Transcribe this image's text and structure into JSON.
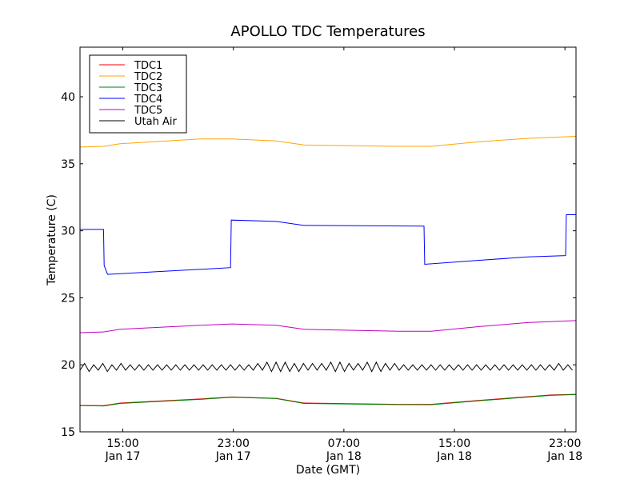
{
  "chart_data": {
    "type": "line",
    "title": "APOLLO TDC Temperatures",
    "xlabel": "Date (GMT)",
    "ylabel": "Temperature (C)",
    "x_units": "hours since Jan 17 00:00 GMT",
    "xlim": [
      11.9,
      47.8
    ],
    "ylim": [
      15,
      43.7
    ],
    "yticks": [
      15,
      20,
      25,
      30,
      35,
      40
    ],
    "xticks": [
      {
        "value": 15,
        "label": [
          "15:00",
          "Jan 17"
        ]
      },
      {
        "value": 23,
        "label": [
          "23:00",
          "Jan 17"
        ]
      },
      {
        "value": 31,
        "label": [
          "07:00",
          "Jan 18"
        ]
      },
      {
        "value": 39,
        "label": [
          "15:00",
          "Jan 18"
        ]
      },
      {
        "value": 47,
        "label": [
          "23:00",
          "Jan 18"
        ]
      }
    ],
    "grid": false,
    "legend_position": "top-left",
    "series": [
      {
        "name": "TDC1",
        "color": "#ff0000",
        "x": [
          11.9,
          13.6,
          14.8,
          20.6,
          22.9,
          26.1,
          28.1,
          35.0,
          37.3,
          40.8,
          46.0,
          47.8
        ],
        "y": [
          16.97,
          16.95,
          17.15,
          17.45,
          17.6,
          17.5,
          17.15,
          17.05,
          17.05,
          17.35,
          17.75,
          17.8
        ]
      },
      {
        "name": "TDC2",
        "color": "#ffa500",
        "x": [
          11.9,
          13.6,
          14.8,
          20.6,
          22.9,
          26.1,
          28.1,
          35.0,
          37.3,
          40.8,
          44.3,
          47.8
        ],
        "y": [
          36.25,
          36.3,
          36.5,
          36.85,
          36.85,
          36.7,
          36.4,
          36.3,
          36.3,
          36.65,
          36.9,
          37.05
        ]
      },
      {
        "name": "TDC3",
        "color": "#008000",
        "x": [
          11.9,
          13.6,
          14.8,
          20.6,
          22.9,
          26.1,
          28.1,
          35.0,
          37.3,
          40.8,
          46.0,
          47.8
        ],
        "y": [
          16.95,
          16.93,
          17.12,
          17.42,
          17.58,
          17.48,
          17.12,
          17.03,
          17.02,
          17.32,
          17.72,
          17.78
        ]
      },
      {
        "name": "TDC4",
        "color": "#0000ff",
        "x": [
          11.9,
          13.6,
          13.65,
          13.9,
          22.8,
          22.85,
          26.1,
          28.1,
          36.8,
          36.85,
          40.8,
          44.3,
          47.05,
          47.1,
          47.8
        ],
        "y": [
          30.1,
          30.1,
          27.4,
          26.75,
          27.25,
          30.8,
          30.7,
          30.4,
          30.35,
          27.5,
          27.8,
          28.05,
          28.15,
          31.2,
          31.2
        ]
      },
      {
        "name": "TDC5",
        "color": "#bf00bf",
        "x": [
          11.9,
          13.6,
          14.8,
          20.6,
          22.9,
          26.1,
          28.1,
          35.0,
          37.3,
          40.8,
          44.3,
          47.8
        ],
        "y": [
          22.4,
          22.45,
          22.65,
          22.95,
          23.05,
          22.95,
          22.65,
          22.5,
          22.5,
          22.85,
          23.15,
          23.3
        ]
      },
      {
        "name": "Utah Air",
        "color": "#000000",
        "x_start": 11.9,
        "x_step": 0.33,
        "y": [
          19.6,
          20.1,
          19.5,
          20.0,
          19.6,
          20.1,
          19.5,
          20.0,
          19.6,
          20.1,
          19.6,
          20.0,
          19.6,
          20.0,
          19.6,
          20.0,
          19.6,
          20.0,
          19.6,
          20.0,
          19.6,
          20.0,
          19.6,
          20.0,
          19.6,
          20.0,
          19.6,
          20.0,
          19.6,
          20.0,
          19.6,
          20.0,
          19.6,
          20.0,
          19.6,
          20.0,
          19.6,
          20.0,
          19.6,
          20.1,
          19.6,
          20.2,
          19.5,
          20.2,
          19.5,
          20.2,
          19.5,
          20.1,
          19.5,
          20.1,
          19.6,
          20.1,
          19.6,
          20.1,
          19.6,
          20.2,
          19.5,
          20.2,
          19.5,
          20.1,
          19.6,
          20.1,
          19.6,
          20.2,
          19.5,
          20.2,
          19.5,
          20.1,
          19.6,
          20.1,
          19.6,
          20.0,
          19.6,
          20.0,
          19.6,
          20.0,
          19.6,
          20.0,
          19.6,
          20.0,
          19.6,
          20.0,
          19.6,
          20.0,
          19.6,
          20.0,
          19.6,
          20.0,
          19.6,
          20.0,
          19.6,
          20.0,
          19.6,
          20.0,
          19.6,
          20.0,
          19.6,
          20.0,
          19.6,
          20.0,
          19.6,
          20.0,
          19.6,
          20.0,
          19.6,
          20.1,
          19.6,
          20.0,
          19.6
        ]
      }
    ]
  }
}
